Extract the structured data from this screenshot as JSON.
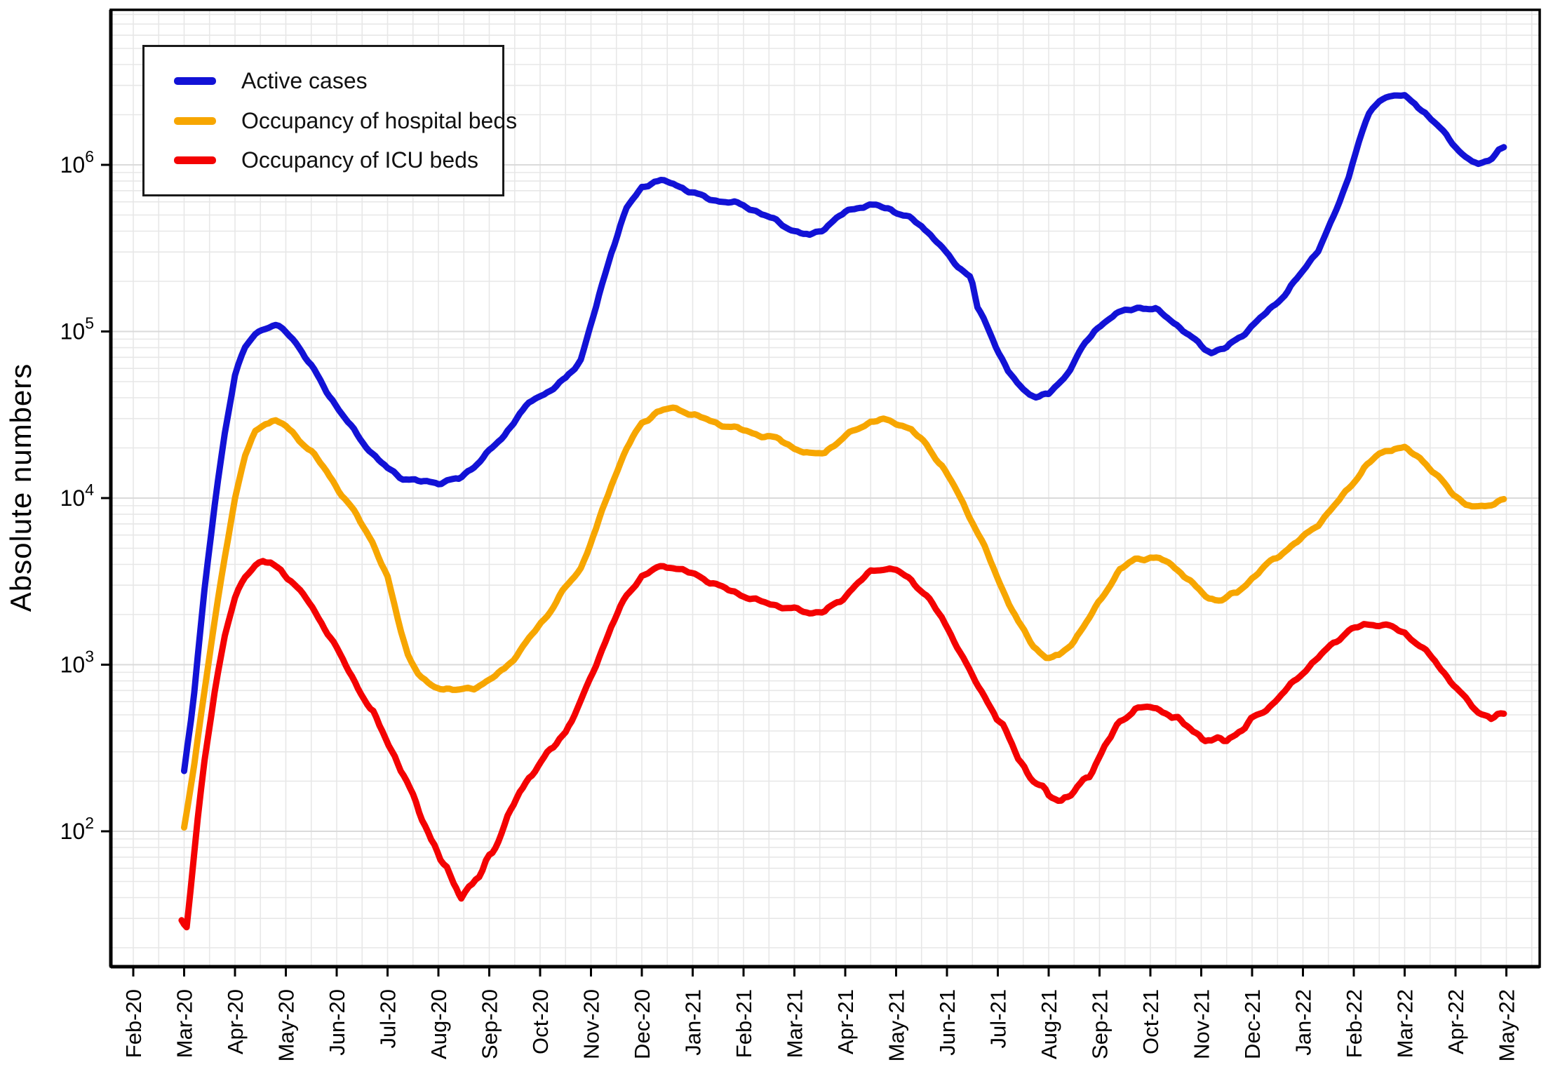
{
  "page": {
    "background": "#ffffff"
  },
  "chart_data": {
    "type": "line",
    "title": "",
    "ylabel": "Absolute numbers",
    "xlabel": "",
    "y_scale": "log10",
    "y_tick_base": "10",
    "y_tick_exponents": [
      6,
      5,
      4,
      3,
      2
    ],
    "ylim_log10": [
      1.2,
      6.94
    ],
    "grid": "on-light-gray-log-minor",
    "legend_position": "top-left",
    "x_tick_labels": [
      "Feb-20",
      "Mar-20",
      "Apr-20",
      "May-20",
      "Jun-20",
      "Jul-20",
      "Aug-20",
      "Sep-20",
      "Oct-20",
      "Nov-20",
      "Dec-20",
      "Jan-21",
      "Feb-21",
      "Mar-21",
      "Apr-21",
      "May-21",
      "Jun-21",
      "Jul-21",
      "Aug-21",
      "Sep-21",
      "Oct-21",
      "Nov-21",
      "Dec-21",
      "Jan-22",
      "Feb-22",
      "Mar-22",
      "Apr-22",
      "May-22"
    ],
    "x_unit": "months since Feb-2020",
    "series": [
      {
        "name": "Active cases",
        "color": "#1212d6",
        "points": [
          [
            1.0,
            230
          ],
          [
            1.2,
            700
          ],
          [
            1.4,
            2800
          ],
          [
            1.6,
            9000
          ],
          [
            1.8,
            25000
          ],
          [
            2.0,
            55000
          ],
          [
            2.2,
            80000
          ],
          [
            2.4,
            97000
          ],
          [
            2.6,
            106000
          ],
          [
            2.8,
            108000
          ],
          [
            3.0,
            100000
          ],
          [
            3.2,
            86000
          ],
          [
            3.5,
            62000
          ],
          [
            3.8,
            44000
          ],
          [
            4.1,
            32000
          ],
          [
            4.4,
            24000
          ],
          [
            4.7,
            18500
          ],
          [
            5.0,
            15000
          ],
          [
            5.3,
            13200
          ],
          [
            5.6,
            12600
          ],
          [
            6.0,
            12400
          ],
          [
            6.4,
            13000
          ],
          [
            6.7,
            15500
          ],
          [
            7.0,
            19000
          ],
          [
            7.3,
            24000
          ],
          [
            7.6,
            32000
          ],
          [
            7.9,
            40000
          ],
          [
            8.2,
            44000
          ],
          [
            8.5,
            52000
          ],
          [
            8.8,
            68000
          ],
          [
            9.1,
            140000
          ],
          [
            9.4,
            300000
          ],
          [
            9.7,
            550000
          ],
          [
            10.0,
            730000
          ],
          [
            10.25,
            800000
          ],
          [
            10.5,
            790000
          ],
          [
            10.8,
            730000
          ],
          [
            11.1,
            660000
          ],
          [
            11.4,
            615000
          ],
          [
            11.7,
            600000
          ],
          [
            12.0,
            570000
          ],
          [
            12.3,
            520000
          ],
          [
            12.7,
            450000
          ],
          [
            13.0,
            400000
          ],
          [
            13.3,
            375000
          ],
          [
            13.6,
            420000
          ],
          [
            14.0,
            520000
          ],
          [
            14.3,
            565000
          ],
          [
            14.6,
            570000
          ],
          [
            14.9,
            540000
          ],
          [
            15.2,
            490000
          ],
          [
            15.5,
            430000
          ],
          [
            15.8,
            350000
          ],
          [
            16.1,
            265000
          ],
          [
            16.45,
            215000
          ],
          [
            16.5,
            195000
          ],
          [
            16.6,
            140000
          ],
          [
            16.9,
            90000
          ],
          [
            17.2,
            58000
          ],
          [
            17.5,
            44000
          ],
          [
            17.75,
            41000
          ],
          [
            18.0,
            42000
          ],
          [
            18.3,
            52000
          ],
          [
            18.6,
            75000
          ],
          [
            18.9,
            100000
          ],
          [
            19.2,
            122000
          ],
          [
            19.5,
            133000
          ],
          [
            19.8,
            140000
          ],
          [
            20.1,
            135000
          ],
          [
            20.4,
            118000
          ],
          [
            20.7,
            98000
          ],
          [
            21.0,
            82000
          ],
          [
            21.2,
            75000
          ],
          [
            21.5,
            80000
          ],
          [
            21.8,
            95000
          ],
          [
            22.1,
            115000
          ],
          [
            22.4,
            140000
          ],
          [
            22.7,
            175000
          ],
          [
            23.0,
            230000
          ],
          [
            23.3,
            310000
          ],
          [
            23.6,
            480000
          ],
          [
            23.9,
            850000
          ],
          [
            24.1,
            1400000
          ],
          [
            24.3,
            2000000
          ],
          [
            24.5,
            2450000
          ],
          [
            24.7,
            2600000
          ],
          [
            24.85,
            2620000
          ],
          [
            25.0,
            2550000
          ],
          [
            25.2,
            2350000
          ],
          [
            25.4,
            2050000
          ],
          [
            25.7,
            1650000
          ],
          [
            26.0,
            1300000
          ],
          [
            26.2,
            1100000
          ],
          [
            26.45,
            1000000
          ],
          [
            26.65,
            1070000
          ],
          [
            26.85,
            1230000
          ],
          [
            26.95,
            1260000
          ]
        ]
      },
      {
        "name": "Occupancy of hospital beds",
        "color": "#f7a600",
        "points": [
          [
            1.0,
            105
          ],
          [
            1.2,
            260
          ],
          [
            1.4,
            700
          ],
          [
            1.6,
            1800
          ],
          [
            1.8,
            4500
          ],
          [
            2.0,
            10000
          ],
          [
            2.2,
            18000
          ],
          [
            2.4,
            25000
          ],
          [
            2.6,
            28500
          ],
          [
            2.8,
            29000
          ],
          [
            3.0,
            27000
          ],
          [
            3.2,
            23500
          ],
          [
            3.5,
            19000
          ],
          [
            3.8,
            14500
          ],
          [
            4.1,
            10500
          ],
          [
            4.4,
            7800
          ],
          [
            4.7,
            5500
          ],
          [
            5.0,
            3300
          ],
          [
            5.2,
            1900
          ],
          [
            5.4,
            1150
          ],
          [
            5.6,
            880
          ],
          [
            5.8,
            760
          ],
          [
            6.1,
            720
          ],
          [
            6.4,
            700
          ],
          [
            6.7,
            730
          ],
          [
            7.0,
            800
          ],
          [
            7.3,
            950
          ],
          [
            7.6,
            1200
          ],
          [
            7.9,
            1600
          ],
          [
            8.2,
            2100
          ],
          [
            8.5,
            2900
          ],
          [
            8.8,
            3800
          ],
          [
            9.1,
            6500
          ],
          [
            9.4,
            12000
          ],
          [
            9.7,
            20000
          ],
          [
            10.0,
            28000
          ],
          [
            10.3,
            33000
          ],
          [
            10.55,
            34500
          ],
          [
            10.8,
            33500
          ],
          [
            11.1,
            31000
          ],
          [
            11.4,
            28500
          ],
          [
            11.7,
            27000
          ],
          [
            12.0,
            25500
          ],
          [
            12.3,
            24000
          ],
          [
            12.7,
            22500
          ],
          [
            13.0,
            20000
          ],
          [
            13.3,
            18200
          ],
          [
            13.6,
            19000
          ],
          [
            13.9,
            22000
          ],
          [
            14.2,
            26000
          ],
          [
            14.5,
            28500
          ],
          [
            14.75,
            29500
          ],
          [
            15.0,
            28500
          ],
          [
            15.3,
            25500
          ],
          [
            15.6,
            21000
          ],
          [
            15.9,
            15500
          ],
          [
            16.2,
            11000
          ],
          [
            16.5,
            7200
          ],
          [
            16.8,
            4600
          ],
          [
            17.1,
            2800
          ],
          [
            17.4,
            1800
          ],
          [
            17.7,
            1300
          ],
          [
            17.95,
            1100
          ],
          [
            18.2,
            1120
          ],
          [
            18.5,
            1400
          ],
          [
            18.8,
            1900
          ],
          [
            19.1,
            2700
          ],
          [
            19.4,
            3700
          ],
          [
            19.7,
            4300
          ],
          [
            20.0,
            4400
          ],
          [
            20.3,
            4200
          ],
          [
            20.6,
            3600
          ],
          [
            20.9,
            2900
          ],
          [
            21.15,
            2500
          ],
          [
            21.4,
            2450
          ],
          [
            21.7,
            2700
          ],
          [
            22.0,
            3300
          ],
          [
            22.3,
            4000
          ],
          [
            22.6,
            4700
          ],
          [
            23.0,
            5800
          ],
          [
            23.3,
            7000
          ],
          [
            23.6,
            8800
          ],
          [
            23.9,
            11500
          ],
          [
            24.2,
            15000
          ],
          [
            24.5,
            18500
          ],
          [
            24.8,
            20000
          ],
          [
            25.0,
            19800
          ],
          [
            25.3,
            17500
          ],
          [
            25.6,
            14000
          ],
          [
            25.9,
            11000
          ],
          [
            26.2,
            9200
          ],
          [
            26.45,
            8700
          ],
          [
            26.7,
            9200
          ],
          [
            26.95,
            9900
          ]
        ]
      },
      {
        "name": "Occupancy of ICU beds",
        "color": "#f40202",
        "points": [
          [
            0.95,
            30
          ],
          [
            1.05,
            27
          ],
          [
            1.2,
            75
          ],
          [
            1.4,
            260
          ],
          [
            1.6,
            700
          ],
          [
            1.8,
            1500
          ],
          [
            2.0,
            2500
          ],
          [
            2.2,
            3400
          ],
          [
            2.4,
            4000
          ],
          [
            2.55,
            4150
          ],
          [
            2.7,
            4050
          ],
          [
            2.9,
            3700
          ],
          [
            3.1,
            3200
          ],
          [
            3.4,
            2500
          ],
          [
            3.7,
            1800
          ],
          [
            4.0,
            1250
          ],
          [
            4.3,
            850
          ],
          [
            4.6,
            580
          ],
          [
            4.9,
            400
          ],
          [
            5.2,
            260
          ],
          [
            5.5,
            160
          ],
          [
            5.8,
            100
          ],
          [
            6.1,
            62
          ],
          [
            6.3,
            48
          ],
          [
            6.45,
            43
          ],
          [
            6.6,
            46
          ],
          [
            6.8,
            52
          ],
          [
            7.0,
            70
          ],
          [
            7.3,
            110
          ],
          [
            7.6,
            170
          ],
          [
            7.9,
            240
          ],
          [
            8.2,
            300
          ],
          [
            8.5,
            400
          ],
          [
            8.8,
            600
          ],
          [
            9.1,
            1000
          ],
          [
            9.4,
            1700
          ],
          [
            9.7,
            2600
          ],
          [
            10.0,
            3400
          ],
          [
            10.3,
            3800
          ],
          [
            10.55,
            3900
          ],
          [
            10.8,
            3700
          ],
          [
            11.1,
            3400
          ],
          [
            11.4,
            3100
          ],
          [
            11.7,
            2800
          ],
          [
            12.0,
            2600
          ],
          [
            12.3,
            2400
          ],
          [
            12.7,
            2250
          ],
          [
            13.0,
            2150
          ],
          [
            13.3,
            2050
          ],
          [
            13.6,
            2100
          ],
          [
            13.9,
            2400
          ],
          [
            14.2,
            3000
          ],
          [
            14.5,
            3600
          ],
          [
            14.75,
            3800
          ],
          [
            15.0,
            3700
          ],
          [
            15.3,
            3200
          ],
          [
            15.6,
            2600
          ],
          [
            15.9,
            1900
          ],
          [
            16.2,
            1300
          ],
          [
            16.5,
            850
          ],
          [
            16.8,
            600
          ],
          [
            17.1,
            420
          ],
          [
            17.4,
            280
          ],
          [
            17.7,
            200
          ],
          [
            18.0,
            165
          ],
          [
            18.25,
            155
          ],
          [
            18.5,
            170
          ],
          [
            18.8,
            220
          ],
          [
            19.1,
            320
          ],
          [
            19.4,
            450
          ],
          [
            19.7,
            545
          ],
          [
            20.0,
            555
          ],
          [
            20.3,
            520
          ],
          [
            20.6,
            450
          ],
          [
            20.9,
            390
          ],
          [
            21.2,
            345
          ],
          [
            21.5,
            355
          ],
          [
            21.8,
            410
          ],
          [
            22.1,
            490
          ],
          [
            22.4,
            580
          ],
          [
            22.7,
            720
          ],
          [
            23.0,
            900
          ],
          [
            23.3,
            1100
          ],
          [
            23.6,
            1350
          ],
          [
            23.9,
            1600
          ],
          [
            24.2,
            1730
          ],
          [
            24.5,
            1750
          ],
          [
            24.7,
            1700
          ],
          [
            25.0,
            1550
          ],
          [
            25.3,
            1300
          ],
          [
            25.6,
            1050
          ],
          [
            25.9,
            800
          ],
          [
            26.2,
            620
          ],
          [
            26.45,
            520
          ],
          [
            26.7,
            480
          ],
          [
            26.95,
            495
          ]
        ]
      }
    ]
  }
}
